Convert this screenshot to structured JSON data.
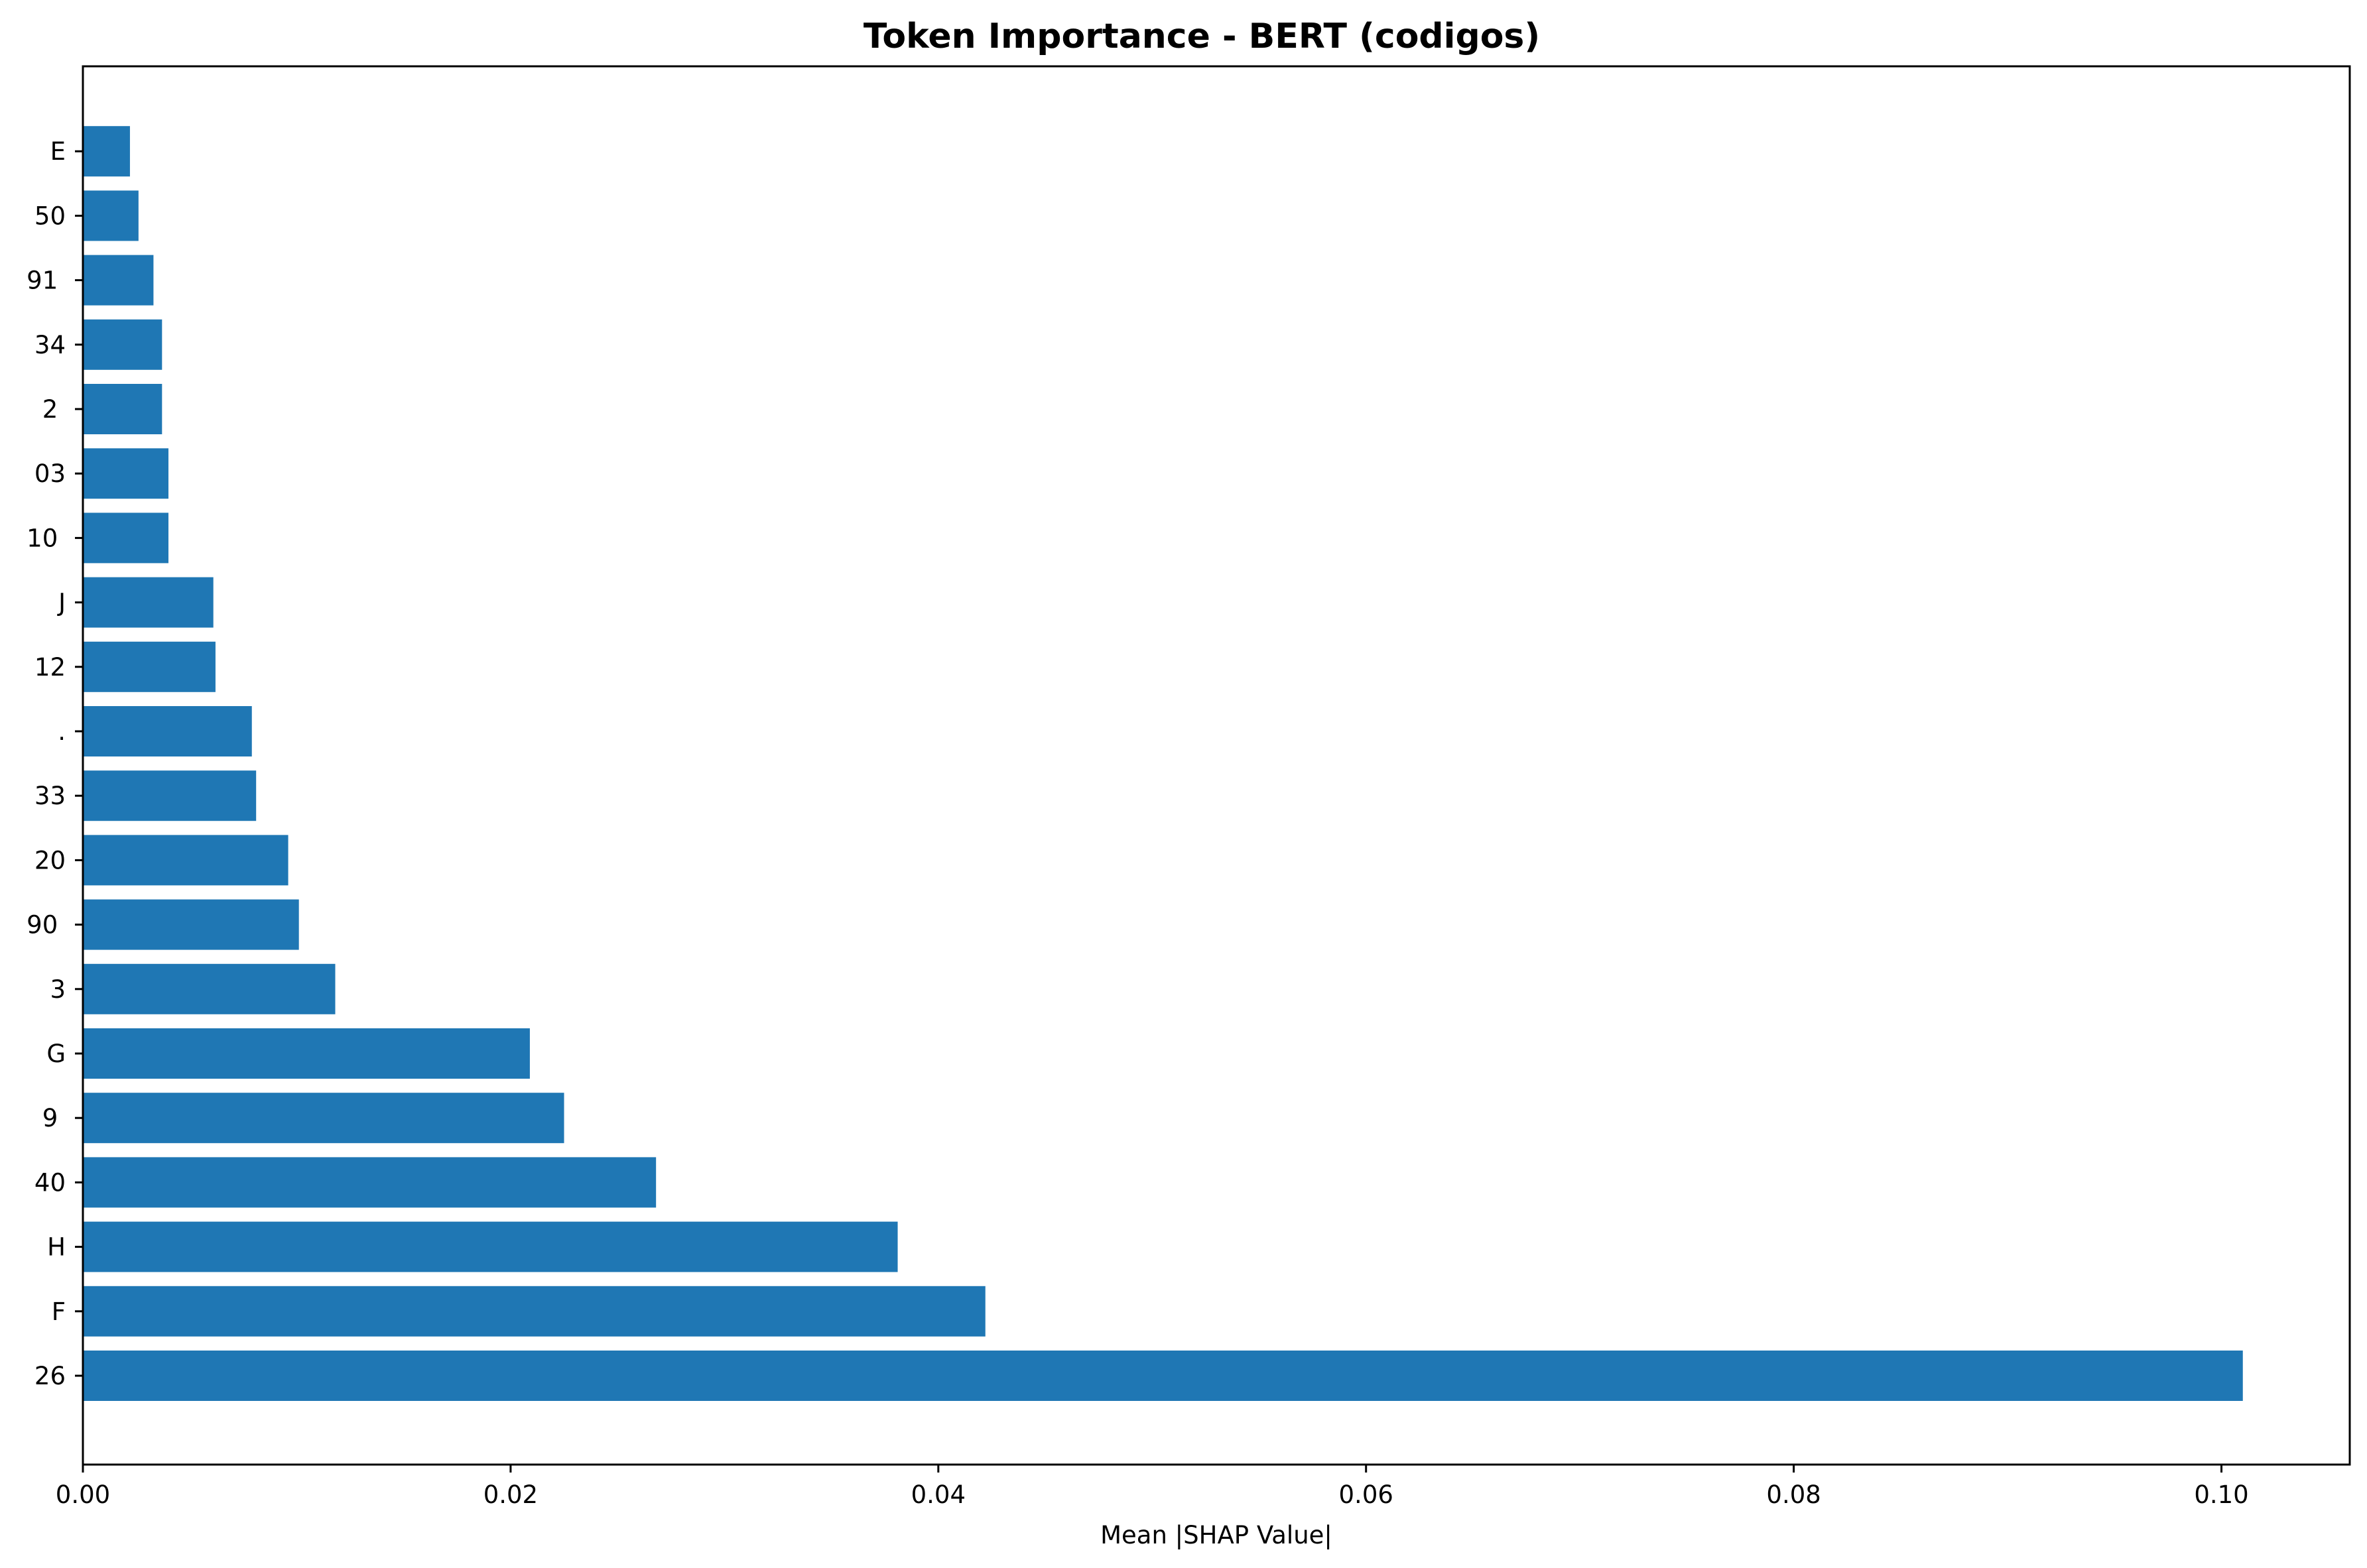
{
  "colors": {
    "bar": "#1f77b4",
    "axis": "#000000",
    "background": "#ffffff"
  },
  "chart_data": {
    "type": "bar",
    "orientation": "horizontal",
    "title": "Token Importance - BERT (codigos)",
    "xlabel": "Mean |SHAP Value|",
    "ylabel": "",
    "xlim": [
      0,
      0.106
    ],
    "xticks": [
      0.0,
      0.02,
      0.04,
      0.06,
      0.08,
      0.1
    ],
    "xtick_labels": [
      "0.00",
      "0.02",
      "0.04",
      "0.06",
      "0.08",
      "0.10"
    ],
    "grid": false,
    "categories": [
      "26",
      "F",
      "H",
      "40",
      "9 ",
      "G",
      "3",
      "90 ",
      "20",
      "33",
      ".",
      "12",
      "J",
      "10 ",
      "03",
      "2 ",
      "34",
      "91 ",
      "50",
      "E"
    ],
    "values": [
      0.101,
      0.0422,
      0.0381,
      0.0268,
      0.0225,
      0.0209,
      0.0118,
      0.0101,
      0.0096,
      0.0081,
      0.0079,
      0.0062,
      0.0061,
      0.004,
      0.004,
      0.0037,
      0.0037,
      0.0033,
      0.0026,
      0.0022
    ]
  }
}
